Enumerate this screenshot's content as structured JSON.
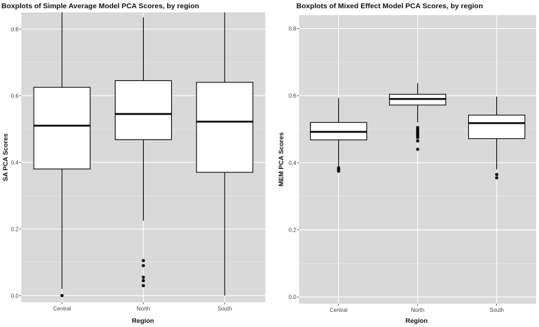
{
  "chart_data": [
    {
      "type": "boxplot",
      "title": "Boxplots of Simple Average Model PCA Scores, by region",
      "xlabel": "Region",
      "ylabel": "SA PCA Scores",
      "categories": [
        "Central",
        "North",
        "South"
      ],
      "ylim": [
        -0.02,
        0.85
      ],
      "yticks": [
        0.0,
        0.2,
        0.4,
        0.6,
        0.8
      ],
      "ytick_labels": [
        "0.0",
        "0.2",
        "0.4",
        "0.6",
        "0.8"
      ],
      "grid": true,
      "boxes": [
        {
          "category": "Central",
          "whisker_low": 0.02,
          "q1": 0.38,
          "median": 0.51,
          "q3": 0.625,
          "whisker_high": 0.85,
          "outliers": [
            0.0
          ]
        },
        {
          "category": "North",
          "whisker_low": 0.225,
          "q1": 0.468,
          "median": 0.545,
          "q3": 0.645,
          "whisker_high": 0.835,
          "outliers": [
            0.03,
            0.045,
            0.055,
            0.09,
            0.105
          ]
        },
        {
          "category": "South",
          "whisker_low": 0.0,
          "q1": 0.37,
          "median": 0.522,
          "q3": 0.64,
          "whisker_high": 0.85,
          "outliers": []
        }
      ]
    },
    {
      "type": "boxplot",
      "title": "Boxplots of Mixed Effect Model PCA Scores, by region",
      "xlabel": "Region",
      "ylabel": "MEM PCA Scores",
      "categories": [
        "Central",
        "North",
        "South"
      ],
      "ylim": [
        -0.02,
        0.84
      ],
      "yticks": [
        0.0,
        0.2,
        0.4,
        0.6,
        0.8
      ],
      "ytick_labels": [
        "0.0",
        "0.2",
        "0.4",
        "0.6",
        "0.8"
      ],
      "grid": true,
      "boxes": [
        {
          "category": "Central",
          "whisker_low": 0.39,
          "q1": 0.468,
          "median": 0.492,
          "q3": 0.52,
          "whisker_high": 0.593,
          "outliers": [
            0.375,
            0.38,
            0.385
          ]
        },
        {
          "category": "North",
          "whisker_low": 0.52,
          "q1": 0.572,
          "median": 0.59,
          "q3": 0.604,
          "whisker_high": 0.637,
          "outliers": [
            0.44,
            0.465,
            0.475,
            0.48,
            0.485,
            0.49,
            0.495,
            0.5,
            0.505
          ]
        },
        {
          "category": "South",
          "whisker_low": 0.38,
          "q1": 0.472,
          "median": 0.518,
          "q3": 0.542,
          "whisker_high": 0.597,
          "outliers": [
            0.355,
            0.365
          ]
        }
      ]
    }
  ]
}
